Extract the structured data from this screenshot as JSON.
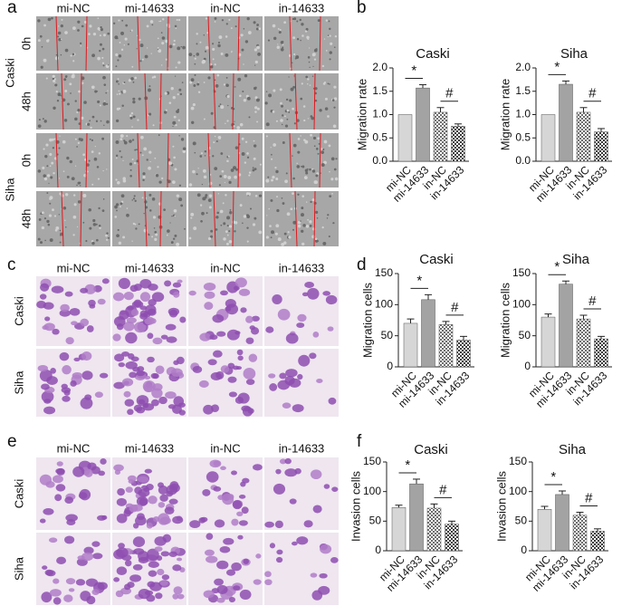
{
  "panel_labels": [
    "a",
    "b",
    "c",
    "d",
    "e",
    "f"
  ],
  "image_panels": [
    {
      "columns": [
        "mi-NC",
        "mi-14633",
        "in-NC",
        "in-14633"
      ],
      "groups": [
        {
          "name": "Caski",
          "rows": [
            "0h",
            "48h"
          ]
        },
        {
          "name": "Siha",
          "rows": [
            "0h",
            "48h"
          ]
        }
      ]
    },
    {
      "columns": [
        "mi-NC",
        "mi-14633",
        "in-NC",
        "in-14633"
      ],
      "rows": [
        "Caski",
        "Siha"
      ]
    },
    {
      "columns": [
        "mi-NC",
        "mi-14633",
        "in-NC",
        "in-14633"
      ],
      "rows": [
        "Caski",
        "Siha"
      ]
    }
  ],
  "chart_data": [
    {
      "type": "bar",
      "title": "Caski",
      "y_label": "Migration rate",
      "categories": [
        "mi-NC",
        "mi-14633",
        "in-NC",
        "in-14633"
      ],
      "values": [
        1.0,
        1.57,
        1.05,
        0.75
      ],
      "errors": [
        0,
        0.07,
        0.1,
        0.05
      ],
      "colors": [
        "#d6d6d6",
        "#a3a3a3",
        "#6e6e6e",
        "#3c3c3c"
      ],
      "hatch": [
        false,
        false,
        true,
        true
      ],
      "ylim": [
        0,
        2
      ],
      "yticks": [
        {
          "value": 0,
          "label": "0.0"
        },
        0.5,
        {
          "value": 1,
          "label": "1.0"
        },
        1.5,
        {
          "value": 2,
          "label": "2.0"
        }
      ],
      "annotations": [
        "*",
        "#"
      ]
    },
    {
      "type": "bar",
      "title": "Siha",
      "y_label": "Migration rate",
      "categories": [
        "mi-NC",
        "mi-14633",
        "in-NC",
        "in-14633"
      ],
      "values": [
        1.0,
        1.65,
        1.05,
        0.63
      ],
      "errors": [
        0,
        0.07,
        0.1,
        0.07
      ],
      "colors": [
        "#d6d6d6",
        "#a3a3a3",
        "#6e6e6e",
        "#3c3c3c"
      ],
      "hatch": [
        false,
        false,
        true,
        true
      ],
      "ylim": [
        0,
        2
      ],
      "yticks": [
        {
          "value": 0,
          "label": "0.0"
        },
        0.5,
        {
          "value": 1,
          "label": "1.0"
        },
        1.5,
        {
          "value": 2,
          "label": "2.0"
        }
      ],
      "annotations": [
        "*",
        "#"
      ]
    },
    {
      "type": "bar",
      "title": "Caski",
      "y_label": "Migration cells",
      "categories": [
        "mi-NC",
        "mi-14633",
        "in-NC",
        "in-14633"
      ],
      "values": [
        70,
        108,
        68,
        43
      ],
      "errors": [
        7,
        8,
        5,
        6
      ],
      "colors": [
        "#d6d6d6",
        "#a3a3a3",
        "#6e6e6e",
        "#3c3c3c"
      ],
      "hatch": [
        false,
        false,
        true,
        true
      ],
      "ylim": [
        0,
        150
      ],
      "yticks": [
        0,
        50,
        100,
        150
      ],
      "annotations": [
        "*",
        "#"
      ]
    },
    {
      "type": "bar",
      "title": "Siha",
      "y_label": "Migration cells",
      "categories": [
        "mi-NC",
        "mi-14633",
        "in-NC",
        "in-14633"
      ],
      "values": [
        80,
        133,
        77,
        45
      ],
      "errors": [
        5,
        5,
        6,
        4
      ],
      "colors": [
        "#d6d6d6",
        "#a3a3a3",
        "#6e6e6e",
        "#3c3c3c"
      ],
      "hatch": [
        false,
        false,
        true,
        true
      ],
      "ylim": [
        0,
        150
      ],
      "yticks": [
        0,
        50,
        100,
        150
      ],
      "annotations": [
        "*",
        "#"
      ]
    },
    {
      "type": "bar",
      "title": "Caski",
      "y_label": "Invasion  cells",
      "categories": [
        "mi-NC",
        "mi-14633",
        "in-NC",
        "in-14633"
      ],
      "values": [
        73,
        113,
        72,
        45
      ],
      "errors": [
        4,
        8,
        7,
        5
      ],
      "colors": [
        "#d6d6d6",
        "#a3a3a3",
        "#6e6e6e",
        "#3c3c3c"
      ],
      "hatch": [
        false,
        false,
        true,
        true
      ],
      "ylim": [
        0,
        150
      ],
      "yticks": [
        0,
        50,
        100,
        150
      ],
      "annotations": [
        "*",
        "#"
      ]
    },
    {
      "type": "bar",
      "title": "Siha",
      "y_label": "Invasion  cells",
      "categories": [
        "mi-NC",
        "mi-14633",
        "in-NC",
        "in-14633"
      ],
      "values": [
        70,
        95,
        60,
        33
      ],
      "errors": [
        5,
        6,
        5,
        4
      ],
      "colors": [
        "#d6d6d6",
        "#a3a3a3",
        "#6e6e6e",
        "#3c3c3c"
      ],
      "hatch": [
        false,
        false,
        true,
        true
      ],
      "ylim": [
        0,
        150
      ],
      "yticks": [
        0,
        50,
        100,
        150
      ],
      "annotations": [
        "*",
        "#"
      ]
    }
  ]
}
